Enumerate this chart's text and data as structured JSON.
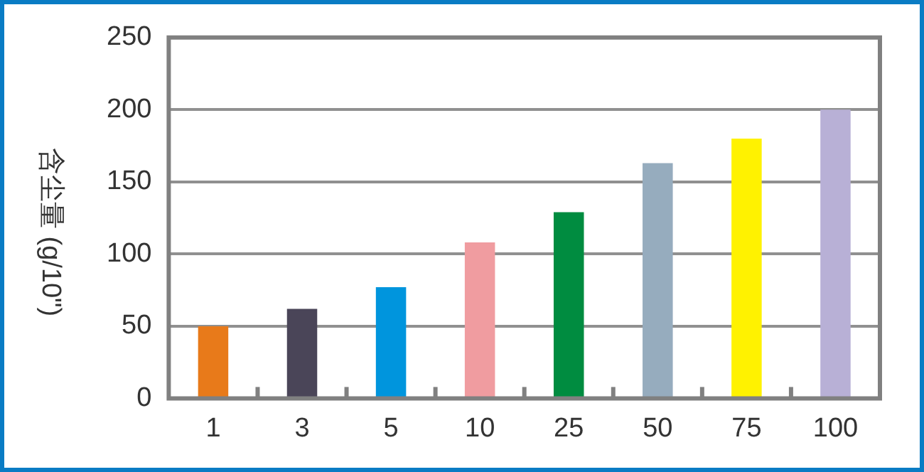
{
  "chart_data": {
    "type": "bar",
    "ylabel": "含尘量 (g/10\")",
    "categories": [
      "1",
      "3",
      "5",
      "10",
      "25",
      "50",
      "75",
      "100"
    ],
    "values": [
      50,
      62,
      77,
      108,
      129,
      163,
      180,
      200
    ],
    "colors": [
      "#e87a1a",
      "#4a4558",
      "#0095dd",
      "#f09ca0",
      "#008c40",
      "#96acbe",
      "#fff200",
      "#b8b0d6"
    ],
    "ylim": [
      0,
      250
    ],
    "yticks": [
      0,
      50,
      100,
      150,
      200,
      250
    ],
    "grid": "y",
    "legend": false
  }
}
